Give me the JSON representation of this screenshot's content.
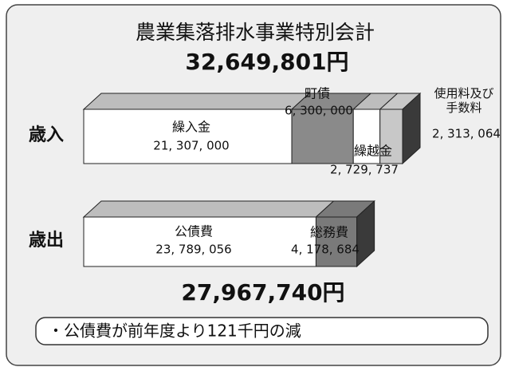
{
  "chart_data": {
    "type": "bar3d",
    "title": "農業集落排水事業特別会計",
    "categories": [
      "歳入",
      "歳出"
    ],
    "totals": [
      "32,649,801円",
      "27,967,740円"
    ],
    "series": [
      {
        "name": "繰入金",
        "color": "#ffffff",
        "values": [
          21307000,
          null
        ],
        "value_labels": [
          "21, 307, 000",
          null
        ]
      },
      {
        "name": "町債",
        "color": "#8a8a8a",
        "values": [
          6300000,
          null
        ],
        "value_labels": [
          "6, 300, 000",
          null
        ]
      },
      {
        "name": "繰越金",
        "color": "#ffffff",
        "values": [
          2729737,
          null
        ],
        "value_labels": [
          "2, 729, 737",
          null
        ]
      },
      {
        "name": "使用料及び手数料",
        "color": "#c8c8c8",
        "values": [
          2313064,
          null
        ],
        "value_labels": [
          "2, 313, 064",
          null
        ]
      },
      {
        "name": "公債費",
        "color": "#ffffff",
        "values": [
          null,
          23789056
        ],
        "value_labels": [
          null,
          "23, 789, 056"
        ]
      },
      {
        "name": "総務費",
        "color": "#7a7a7a",
        "values": [
          null,
          4178684
        ],
        "value_labels": [
          null,
          "4, 178, 684"
        ]
      }
    ],
    "note": "・公債費が前年度より121千円の減"
  }
}
